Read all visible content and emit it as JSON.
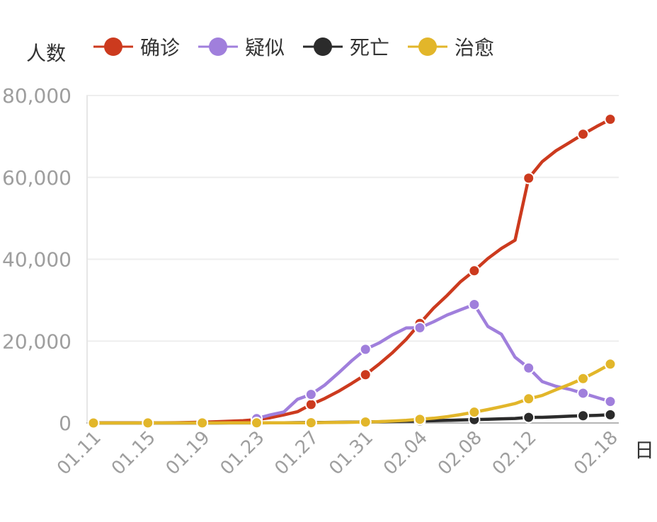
{
  "chart_data": {
    "type": "line",
    "ylabel": "人数",
    "xlabel": "日",
    "ylim": [
      0,
      80000
    ],
    "yticks": [
      "0",
      "20,000",
      "40,000",
      "60,000",
      "80,000"
    ],
    "ytick_values": [
      0,
      20000,
      40000,
      60000,
      80000
    ],
    "grid": true,
    "legend_position": "top",
    "x": [
      "01.11",
      "01.12",
      "01.13",
      "01.14",
      "01.15",
      "01.16",
      "01.17",
      "01.18",
      "01.19",
      "01.20",
      "01.21",
      "01.22",
      "01.23",
      "01.24",
      "01.25",
      "01.26",
      "01.27",
      "01.28",
      "01.29",
      "01.30",
      "01.31",
      "02.01",
      "02.02",
      "02.03",
      "02.04",
      "02.05",
      "02.06",
      "02.07",
      "02.08",
      "02.09",
      "02.10",
      "02.11",
      "02.12",
      "02.13",
      "02.14",
      "02.15",
      "02.16",
      "02.17",
      "02.18"
    ],
    "xticks": [
      "01.11",
      "01.15",
      "01.19",
      "01.23",
      "01.27",
      "01.31",
      "02.04",
      "02.08",
      "02.12",
      "02.18"
    ],
    "series": [
      {
        "name": "确诊",
        "color": "#cc3a1e",
        "values": [
          41,
          41,
          41,
          41,
          41,
          45,
          62,
          121,
          198,
          291,
          440,
          571,
          830,
          1287,
          1975,
          2744,
          4515,
          5974,
          7711,
          9692,
          11791,
          14380,
          17205,
          20438,
          24324,
          28018,
          31161,
          34546,
          37198,
          40171,
          42638,
          44653,
          59804,
          63851,
          66492,
          68500,
          70548,
          72436,
          74185
        ]
      },
      {
        "name": "疑似",
        "color": "#a07fdc",
        "values": [
          null,
          null,
          null,
          null,
          null,
          null,
          null,
          null,
          null,
          null,
          null,
          null,
          1072,
          1965,
          2684,
          5794,
          6973,
          9239,
          12167,
          15238,
          17988,
          19544,
          21558,
          23214,
          23260,
          24702,
          26359,
          27657,
          28942,
          23589,
          21675,
          16067,
          13435,
          10109,
          8969,
          8228,
          7264,
          6242,
          5248
        ]
      },
      {
        "name": "死亡",
        "color": "#2b2b2b",
        "values": [
          1,
          1,
          1,
          1,
          2,
          2,
          2,
          3,
          4,
          6,
          9,
          17,
          25,
          41,
          56,
          80,
          106,
          132,
          170,
          213,
          259,
          304,
          361,
          425,
          490,
          563,
          636,
          722,
          811,
          908,
          1016,
          1113,
          1367,
          1380,
          1523,
          1665,
          1770,
          1868,
          2004
        ]
      },
      {
        "name": "治愈",
        "color": "#e2b62a",
        "values": [
          0,
          0,
          0,
          0,
          12,
          12,
          12,
          17,
          17,
          25,
          28,
          28,
          34,
          38,
          49,
          51,
          60,
          103,
          124,
          171,
          243,
          328,
          475,
          632,
          892,
          1153,
          1540,
          2050,
          2649,
          3281,
          3996,
          4740,
          5911,
          6723,
          8096,
          9419,
          10844,
          12552,
          14376
        ]
      }
    ]
  }
}
